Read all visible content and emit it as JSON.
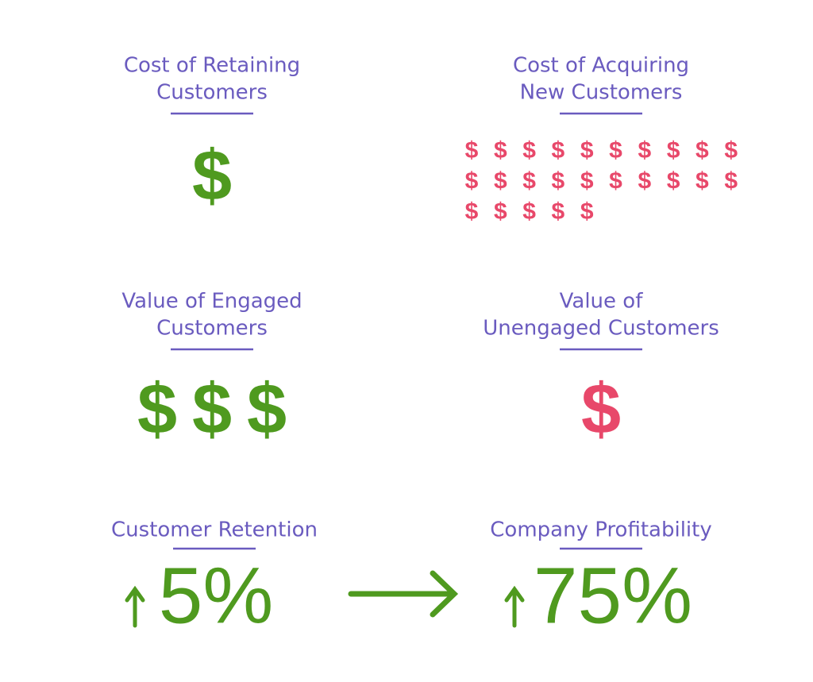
{
  "panels": [
    {
      "title_lines": [
        "Cost of Retaining",
        "Customers"
      ],
      "symbol": "$",
      "count": 1,
      "color": "#4f9a1f"
    },
    {
      "title_lines": [
        "Cost of Acquiring",
        "New Customers"
      ],
      "symbol": "$",
      "count": 25,
      "color": "#e8486a"
    },
    {
      "title_lines": [
        "Value of Engaged",
        "Customers"
      ],
      "symbol": "$",
      "count": 3,
      "color": "#4f9a1f"
    },
    {
      "title_lines": [
        "Value of",
        "Unengaged Customers"
      ],
      "symbol": "$",
      "count": 1,
      "color": "#e8486a"
    }
  ],
  "stats": [
    {
      "title": "Customer Retention",
      "value": "5%"
    },
    {
      "title": "Company Profitability",
      "value": "75%"
    }
  ]
}
